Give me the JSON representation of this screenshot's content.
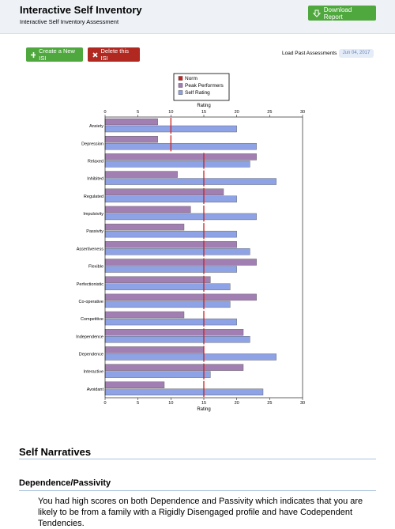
{
  "header": {
    "title": "Interactive Self Inventory",
    "subtitle": "Interactive Self Inventory Assessment",
    "download_button": "Download Report"
  },
  "toolbar": {
    "create_button": "Create a New ISI",
    "delete_button": "Delete this ISI",
    "load_label": "Load Past Assessments",
    "date": "Jun 04, 2017"
  },
  "chart_data": {
    "type": "bar",
    "orientation": "horizontal",
    "x_label": "Rating",
    "categories": [
      "Anxiety",
      "Depression",
      "Relaxed",
      "Inhibited",
      "Regulated",
      "Impulsivity",
      "Passivity",
      "Assertiveness",
      "Flexible",
      "Perfectionistic",
      "Co-operative",
      "Competitive",
      "Independence",
      "Dependence",
      "Interactive",
      "Avoidant"
    ],
    "series": [
      {
        "name": "Norm",
        "color": "#cc2222",
        "mark": "line",
        "values": [
          10,
          10,
          15,
          15,
          15,
          15,
          15,
          15,
          15,
          15,
          15,
          15,
          15,
          15,
          15,
          15
        ]
      },
      {
        "name": "Peak Performers",
        "color": "#a27fb3",
        "mark": "bar",
        "values": [
          8,
          8,
          23,
          11,
          18,
          13,
          12,
          20,
          23,
          16,
          23,
          12,
          21,
          15,
          21,
          9
        ]
      },
      {
        "name": "Self Rating",
        "color": "#8ea2e6",
        "mark": "bar",
        "values": [
          20,
          23,
          22,
          26,
          20,
          23,
          20,
          22,
          20,
          19,
          19,
          20,
          22,
          26,
          16,
          24
        ]
      }
    ],
    "xlim": [
      0,
      30
    ],
    "xticks": [
      0,
      5,
      10,
      15,
      20,
      25,
      30
    ]
  },
  "narratives": {
    "title": "Self Narratives",
    "sections": [
      {
        "heading": "Dependence/Passivity",
        "text": "You had high scores on both Dependence and Passivity which indicates that you are likely to be from a family with a Rigidly Disengaged profile and have Codependent Tendencies."
      }
    ]
  }
}
